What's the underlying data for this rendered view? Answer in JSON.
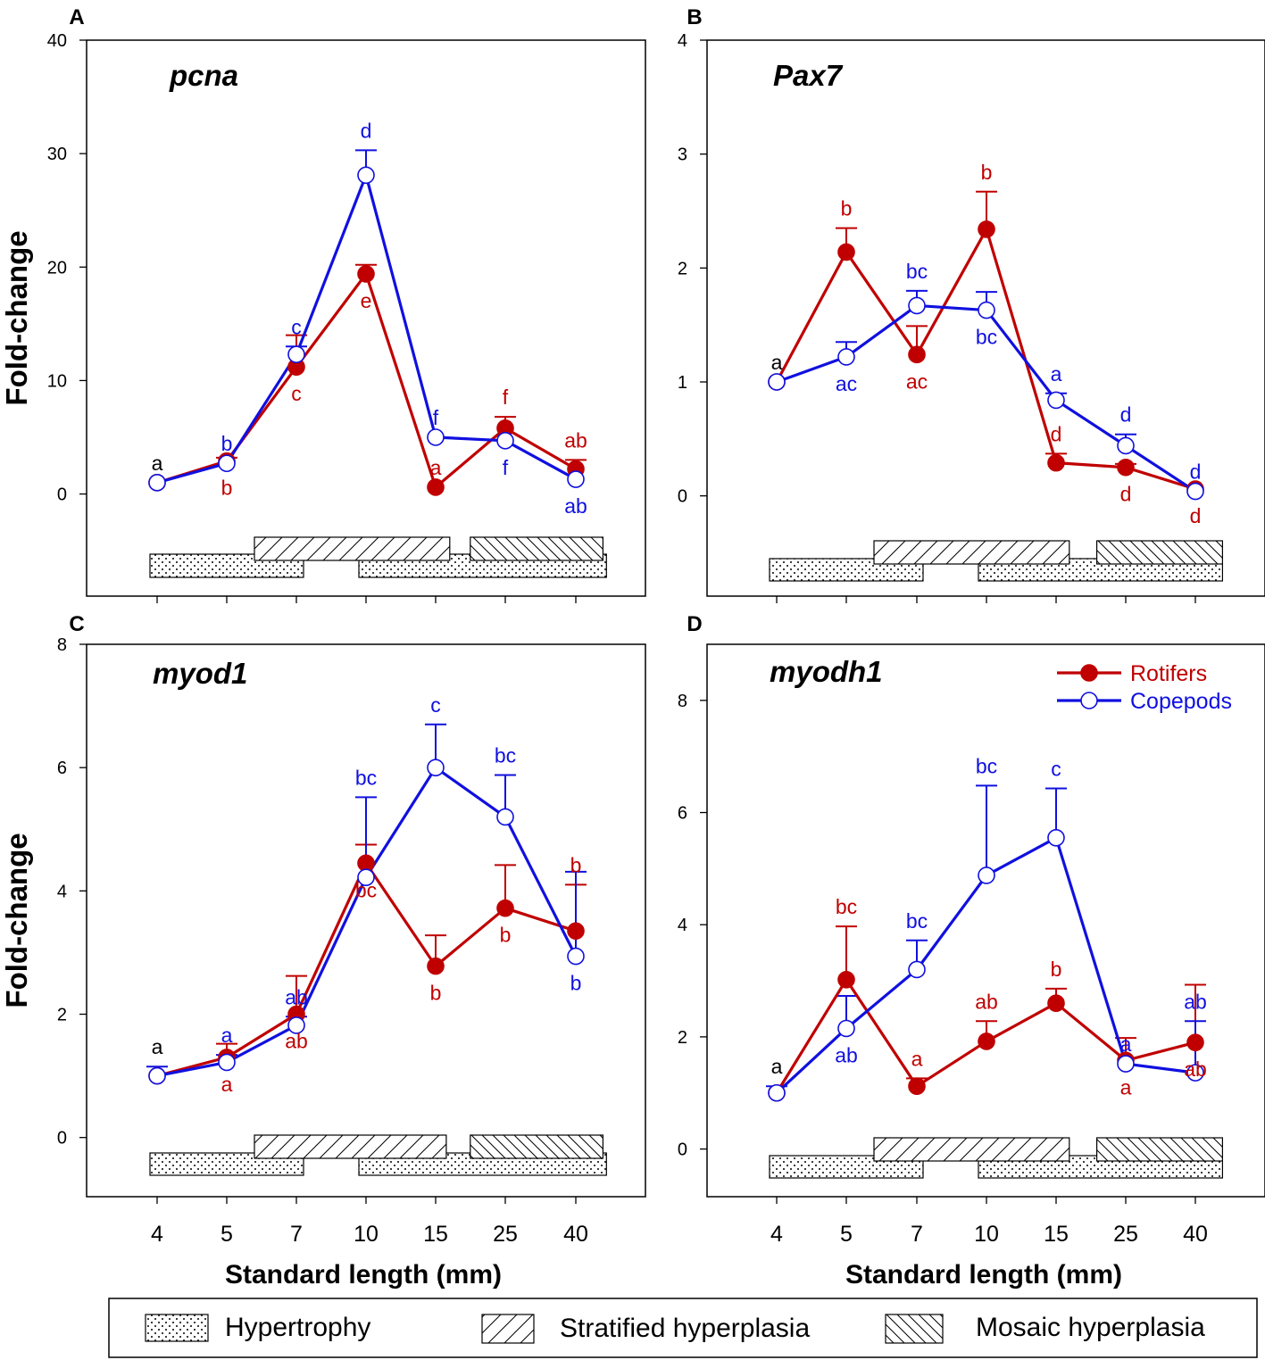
{
  "legend_series": [
    {
      "name": "Rotifers",
      "color": "#c00000",
      "filled": true
    },
    {
      "name": "Copepods",
      "color": "#1010e0",
      "filled": false
    }
  ],
  "legend_patterns": [
    {
      "name": "Hypertrophy",
      "pattern": "dots"
    },
    {
      "name": "Stratified hyperplasia",
      "pattern": "diag-up"
    },
    {
      "name": "Mosaic hyperplasia",
      "pattern": "diag-down"
    }
  ],
  "colors": {
    "rotifers": "#c00000",
    "copepods": "#1010e0",
    "neutral": "#000000"
  },
  "chart_data": [
    {
      "panel": "A",
      "title": "pcna",
      "type": "line",
      "ylabel": "Fold-change",
      "xlabel": "",
      "ylim": [
        -9,
        40
      ],
      "yticks": [
        0,
        10,
        20,
        30,
        40
      ],
      "categories": [
        "4",
        "5",
        "7",
        "10",
        "15",
        "25",
        "40"
      ],
      "series": [
        {
          "name": "Rotifers",
          "values": [
            1.0,
            2.9,
            11.2,
            19.4,
            0.6,
            5.8,
            2.2
          ],
          "err": [
            0,
            0.3,
            2.8,
            0.8,
            0,
            1.0,
            0.8
          ],
          "letters": [
            "",
            "b",
            "c",
            "e",
            "a",
            "f",
            "ab"
          ],
          "letter_pos": [
            "",
            "below",
            "below",
            "below",
            "above",
            "above",
            "above"
          ]
        },
        {
          "name": "Copepods",
          "values": [
            1.0,
            2.7,
            12.3,
            28.1,
            5.0,
            4.7,
            1.3
          ],
          "err": [
            0,
            0,
            0.7,
            2.2,
            0,
            0,
            0
          ],
          "letters": [
            "a",
            "b",
            "c",
            "d",
            "f",
            "f",
            "ab"
          ],
          "letter_pos": [
            "above",
            "above",
            "above",
            "above",
            "above",
            "below",
            "below"
          ]
        }
      ],
      "phases": [
        {
          "pattern": "dots",
          "range": [
            0,
            2
          ],
          "row": "low"
        },
        {
          "pattern": "diag-up",
          "range": [
            1.5,
            4.1
          ],
          "row": "high"
        },
        {
          "pattern": "dots",
          "range": [
            3,
            6.35
          ],
          "row": "low"
        },
        {
          "pattern": "diag-down",
          "range": [
            4.6,
            6.3
          ],
          "row": "high"
        }
      ]
    },
    {
      "panel": "B",
      "title": "Pax7",
      "type": "line",
      "ylabel": "",
      "xlabel": "",
      "ylim": [
        -0.88,
        4
      ],
      "yticks": [
        0,
        1,
        2,
        3,
        4
      ],
      "categories": [
        "4",
        "5",
        "7",
        "10",
        "15",
        "25",
        "40"
      ],
      "series": [
        {
          "name": "Rotifers",
          "values": [
            1.0,
            2.14,
            1.24,
            2.34,
            0.29,
            0.25,
            0.06
          ],
          "err": [
            0,
            0.21,
            0.25,
            0.33,
            0.08,
            0.03,
            0
          ],
          "letters": [
            "",
            "b",
            "ac",
            "b",
            "d",
            "d",
            "d"
          ],
          "letter_pos": [
            "",
            "above",
            "below",
            "above",
            "above",
            "below",
            "below"
          ]
        },
        {
          "name": "Copepods",
          "values": [
            1.0,
            1.22,
            1.67,
            1.63,
            0.84,
            0.44,
            0.04
          ],
          "err": [
            0,
            0.13,
            0.13,
            0.16,
            0.06,
            0.1,
            0
          ],
          "letters": [
            "a",
            "ac",
            "bc",
            "bc",
            "a",
            "d",
            "d"
          ],
          "letter_pos": [
            "above",
            "below",
            "above",
            "below",
            "above",
            "above",
            "above"
          ]
        }
      ],
      "phases": [
        {
          "pattern": "dots",
          "range": [
            0,
            2
          ],
          "row": "low"
        },
        {
          "pattern": "diag-up",
          "range": [
            1.5,
            4.1
          ],
          "row": "high"
        },
        {
          "pattern": "dots",
          "range": [
            3,
            6.3
          ],
          "row": "low"
        },
        {
          "pattern": "diag-down",
          "range": [
            4.7,
            6.3
          ],
          "row": "high"
        }
      ]
    },
    {
      "panel": "C",
      "title": "myod1",
      "type": "line",
      "ylabel": "Fold-change",
      "xlabel": "Standard length (mm)",
      "ylim": [
        -0.96,
        8
      ],
      "yticks": [
        0,
        2,
        4,
        6,
        8
      ],
      "categories": [
        "4",
        "5",
        "7",
        "10",
        "15",
        "25",
        "40"
      ],
      "series": [
        {
          "name": "Rotifers",
          "values": [
            1.0,
            1.3,
            2.0,
            4.45,
            2.78,
            3.72,
            3.35
          ],
          "err": [
            0,
            0.22,
            0.62,
            0.3,
            0.5,
            0.7,
            0.75
          ],
          "letters": [
            "",
            "a",
            "ab",
            "bc",
            "b",
            "b",
            "b"
          ],
          "letter_pos": [
            "",
            "below",
            "below",
            "below",
            "below",
            "below",
            "above"
          ]
        },
        {
          "name": "Copepods",
          "values": [
            1.0,
            1.22,
            1.82,
            4.22,
            6.0,
            5.2,
            2.94
          ],
          "err": [
            0.15,
            0.12,
            0.14,
            1.3,
            0.7,
            0.68,
            1.37
          ],
          "letters": [
            "a",
            "a",
            "ab",
            "bc",
            "c",
            "bc",
            "b"
          ],
          "letter_pos": [
            "above",
            "above",
            "above",
            "above",
            "above",
            "above",
            "below"
          ]
        }
      ],
      "phases": [
        {
          "pattern": "dots",
          "range": [
            0,
            2
          ],
          "row": "low"
        },
        {
          "pattern": "diag-up",
          "range": [
            1.5,
            4.05
          ],
          "row": "high"
        },
        {
          "pattern": "dots",
          "range": [
            3,
            6.35
          ],
          "row": "low"
        },
        {
          "pattern": "diag-down",
          "range": [
            4.6,
            6.3
          ],
          "row": "high"
        }
      ]
    },
    {
      "panel": "D",
      "title": "myodh1",
      "type": "line",
      "ylabel": "",
      "xlabel": "Standard length (mm)",
      "ylim": [
        -0.85,
        9
      ],
      "yticks": [
        0,
        2,
        4,
        6,
        8
      ],
      "categories": [
        "4",
        "5",
        "7",
        "10",
        "15",
        "25",
        "40"
      ],
      "series": [
        {
          "name": "Rotifers",
          "values": [
            1.0,
            3.02,
            1.12,
            1.92,
            2.6,
            1.58,
            1.9
          ],
          "err": [
            0,
            0.95,
            0.14,
            0.36,
            0.26,
            0.4,
            1.03
          ],
          "letters": [
            "",
            "bc",
            "a",
            "ab",
            "b",
            "a",
            "ab"
          ],
          "letter_pos": [
            "",
            "above",
            "above",
            "above",
            "above",
            "below",
            "below"
          ]
        },
        {
          "name": "Copepods",
          "values": [
            1.0,
            2.15,
            3.2,
            4.88,
            5.55,
            1.52,
            1.36
          ],
          "err": [
            0.12,
            0.58,
            0.52,
            1.6,
            0.88,
            0,
            0.92
          ],
          "letters": [
            "a",
            "ab",
            "bc",
            "bc",
            "c",
            "a",
            "ab"
          ],
          "letter_pos": [
            "above",
            "below",
            "above",
            "above",
            "above",
            "above",
            "above"
          ]
        }
      ],
      "phases": [
        {
          "pattern": "dots",
          "range": [
            0,
            2
          ],
          "row": "low"
        },
        {
          "pattern": "diag-up",
          "range": [
            1.5,
            4.1
          ],
          "row": "high"
        },
        {
          "pattern": "dots",
          "range": [
            3,
            6.3
          ],
          "row": "low"
        },
        {
          "pattern": "diag-down",
          "range": [
            4.7,
            6.3
          ],
          "row": "high"
        }
      ]
    }
  ]
}
